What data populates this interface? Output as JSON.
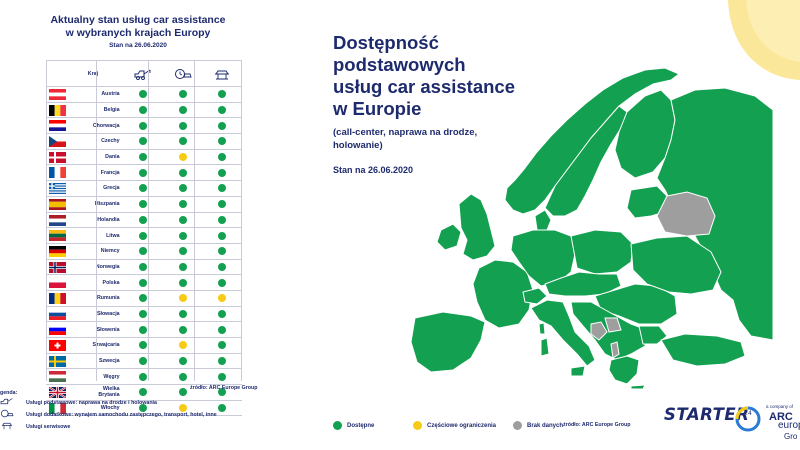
{
  "colors": {
    "available": "#13a050",
    "partial": "#f7cb15",
    "none": "#9e9e9e",
    "navy": "#1e2a6e",
    "line": "#c9cbd8",
    "sun": "#fbe79a"
  },
  "left_panel": {
    "title_line1": "Aktualny stan usług car assistance",
    "title_line2": "w wybranych krajach Europy",
    "date": "Stan na 26.06.2020",
    "column_header": "Kraj",
    "header_icons": [
      "tow-truck-icon",
      "clock-car-icon",
      "car-lift-icon"
    ],
    "source": "źródło: ARC Europe Group"
  },
  "legend_left": {
    "title": "genda:",
    "items": [
      "Usługi podstawowe: naprawa na drodze i holowania",
      "Usługi dodatkowe: wynajem samochodu zastępczego, transport, hotel, inne",
      "Usługi serwisowe"
    ]
  },
  "chart_data": {
    "type": "table",
    "title": "Aktualny stan usług car assistance w wybranych krajach Europy",
    "subtitle": "Stan na 26.06.2020",
    "columns": [
      "Usługi podstawowe",
      "Usługi dodatkowe",
      "Usługi serwisowe"
    ],
    "rows": [
      {
        "country": "Austria",
        "status": [
          "available",
          "available",
          "available"
        ]
      },
      {
        "country": "Belgia",
        "status": [
          "available",
          "available",
          "available"
        ]
      },
      {
        "country": "Chorwacja",
        "status": [
          "available",
          "available",
          "available"
        ]
      },
      {
        "country": "Czechy",
        "status": [
          "available",
          "available",
          "available"
        ]
      },
      {
        "country": "Dania",
        "status": [
          "available",
          "partial",
          "available"
        ]
      },
      {
        "country": "Francja",
        "status": [
          "available",
          "available",
          "available"
        ]
      },
      {
        "country": "Grecja",
        "status": [
          "available",
          "available",
          "available"
        ]
      },
      {
        "country": "Hiszpania",
        "status": [
          "available",
          "available",
          "available"
        ]
      },
      {
        "country": "Holandia",
        "status": [
          "available",
          "available",
          "available"
        ]
      },
      {
        "country": "Litwa",
        "status": [
          "available",
          "available",
          "available"
        ]
      },
      {
        "country": "Niemcy",
        "status": [
          "available",
          "available",
          "available"
        ]
      },
      {
        "country": "Norwegia",
        "status": [
          "available",
          "available",
          "available"
        ]
      },
      {
        "country": "Polska",
        "status": [
          "available",
          "available",
          "available"
        ]
      },
      {
        "country": "Rumunia",
        "status": [
          "available",
          "partial",
          "partial"
        ]
      },
      {
        "country": "Słowacja",
        "status": [
          "available",
          "available",
          "available"
        ]
      },
      {
        "country": "Słowenia",
        "status": [
          "available",
          "available",
          "available"
        ]
      },
      {
        "country": "Szwajcaria",
        "status": [
          "available",
          "partial",
          "available"
        ]
      },
      {
        "country": "Szwecja",
        "status": [
          "available",
          "available",
          "available"
        ]
      },
      {
        "country": "Węgry",
        "status": [
          "available",
          "available",
          "available"
        ]
      },
      {
        "country": "Wielka Brytania",
        "status": [
          "available",
          "available",
          "available"
        ]
      },
      {
        "country": "Włochy",
        "status": [
          "available",
          "partial",
          "available"
        ]
      }
    ],
    "map_legend": [
      "Dostępne",
      "Częściowe ograniczenia",
      "Brak danych"
    ]
  },
  "main": {
    "title_lines": [
      "Dostępność",
      "podstawowych",
      "usług car assistance",
      "w Europie"
    ],
    "subtitle_lines": [
      "(call-center, naprawa na drodze,",
      "holowanie)"
    ],
    "date": "Stan na 26.06.2020",
    "source": "źródło: ARC Europe Group"
  },
  "map_legend": {
    "available": "Dostępne",
    "partial": "Częściowe ograniczenia",
    "none": "Brak danych"
  },
  "logos": {
    "starter": "STARTER",
    "starter_badge": "24",
    "arc_small": "a company of",
    "arc": "ARC",
    "arc_line2": "europe",
    "arc_line3": "Gro"
  }
}
